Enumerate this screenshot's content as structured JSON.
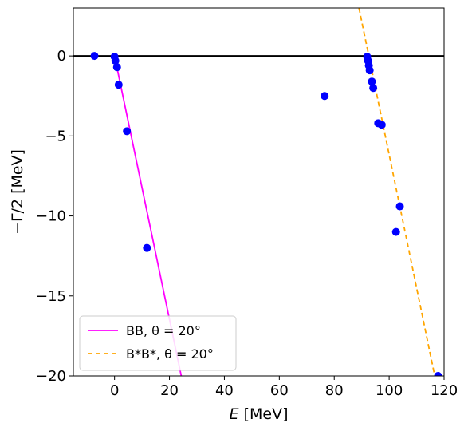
{
  "chart_data": {
    "type": "scatter",
    "xlabel": "E [MeV]",
    "ylabel": "−Γ/2 [MeV]",
    "xlim": [
      -15,
      120
    ],
    "ylim": [
      -20,
      3
    ],
    "x_ticks": [
      0,
      20,
      40,
      60,
      80,
      100,
      120
    ],
    "y_ticks": [
      0,
      -5,
      -10,
      -15,
      -20
    ],
    "x_tick_labels": [
      "0",
      "20",
      "40",
      "60",
      "80",
      "100",
      "120"
    ],
    "y_tick_labels": [
      "0",
      "−5",
      "−10",
      "−15",
      "−20"
    ],
    "grid": false,
    "legend_position": "lower-left",
    "reference_line": {
      "y": 0,
      "color": "#000000"
    },
    "points": {
      "color": "#0000ff",
      "x": [
        -7.3,
        0.0,
        0.3,
        0.9,
        1.5,
        4.5,
        11.8,
        76.5,
        92.0,
        92.3,
        92.6,
        92.9,
        93.7,
        94.2,
        96.0,
        97.3,
        103.9,
        102.5,
        117.8
      ],
      "y": [
        0.0,
        -0.05,
        -0.3,
        -0.7,
        -1.8,
        -4.7,
        -12.0,
        -2.5,
        -0.05,
        -0.3,
        -0.6,
        -0.9,
        -1.6,
        -2.0,
        -4.2,
        -4.3,
        -9.4,
        -11.0,
        -20.0
      ]
    },
    "series": [
      {
        "name": "BB, θ = 20°",
        "color": "#ff00ff",
        "dash": "solid",
        "x": [
          0,
          24.3
        ],
        "y": [
          0,
          -20
        ]
      },
      {
        "name": "B*B*, θ = 20°",
        "color": "#ffa500",
        "dash": "dashed",
        "x": [
          89.0,
          116.6
        ],
        "y": [
          3,
          -20
        ]
      }
    ]
  }
}
